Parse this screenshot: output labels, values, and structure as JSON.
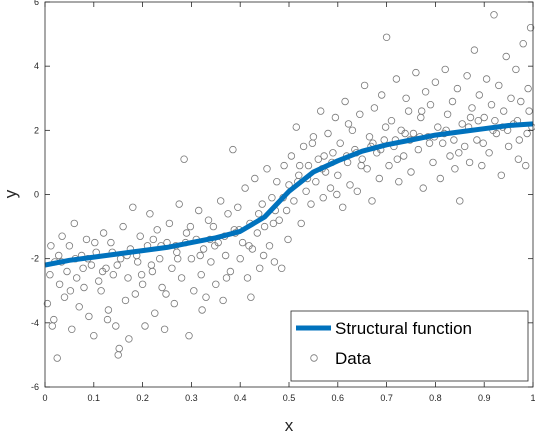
{
  "chart_data": {
    "type": "scatter",
    "title": "",
    "xlabel": "x",
    "ylabel": "y",
    "xlim": [
      0,
      1
    ],
    "ylim": [
      -6,
      6
    ],
    "x_ticks": [
      "0",
      "0.1",
      "0.2",
      "0.3",
      "0.4",
      "0.5",
      "0.6",
      "0.7",
      "0.8",
      "0.9",
      "1"
    ],
    "y_ticks": [
      "-6",
      "-4",
      "-2",
      "0",
      "2",
      "4",
      "6"
    ],
    "grid": false,
    "legend": {
      "position": "bottom-right",
      "entries": [
        "Structural function",
        "Data"
      ]
    },
    "colors": {
      "structural_function": "#0072BD",
      "data_marker": "#7a7a7a"
    },
    "series": [
      {
        "name": "Structural function",
        "style": "line",
        "x": [
          0,
          0.05,
          0.1,
          0.15,
          0.2,
          0.25,
          0.3,
          0.35,
          0.4,
          0.45,
          0.5,
          0.55,
          0.6,
          0.65,
          0.7,
          0.75,
          0.8,
          0.85,
          0.9,
          0.95,
          1.0
        ],
        "y": [
          -2.2,
          -2.05,
          -1.95,
          -1.85,
          -1.75,
          -1.65,
          -1.5,
          -1.35,
          -1.15,
          -0.7,
          0.1,
          0.7,
          1.05,
          1.35,
          1.55,
          1.7,
          1.85,
          1.95,
          2.05,
          2.15,
          2.2
        ]
      },
      {
        "name": "Data",
        "style": "markers",
        "points": [
          [
            0.005,
            -3.4
          ],
          [
            0.01,
            -2.5
          ],
          [
            0.012,
            -1.6
          ],
          [
            0.018,
            -3.9
          ],
          [
            0.02,
            -2.1
          ],
          [
            0.025,
            -5.1
          ],
          [
            0.03,
            -2.8
          ],
          [
            0.035,
            -1.3
          ],
          [
            0.04,
            -3.2
          ],
          [
            0.045,
            -2.4
          ],
          [
            0.05,
            -1.6
          ],
          [
            0.055,
            -4.2
          ],
          [
            0.06,
            -0.9
          ],
          [
            0.065,
            -2.6
          ],
          [
            0.07,
            -3.5
          ],
          [
            0.075,
            -1.9
          ],
          [
            0.08,
            -2.9
          ],
          [
            0.085,
            -1.4
          ],
          [
            0.09,
            -3.8
          ],
          [
            0.095,
            -2.2
          ],
          [
            0.1,
            -4.4
          ],
          [
            0.105,
            -1.8
          ],
          [
            0.11,
            -2.7
          ],
          [
            0.115,
            -3.0
          ],
          [
            0.12,
            -1.2
          ],
          [
            0.125,
            -2.3
          ],
          [
            0.13,
            -3.6
          ],
          [
            0.135,
            -1.5
          ],
          [
            0.14,
            -2.5
          ],
          [
            0.145,
            -4.1
          ],
          [
            0.15,
            -5.0
          ],
          [
            0.152,
            -4.8
          ],
          [
            0.155,
            -2.0
          ],
          [
            0.16,
            -1.0
          ],
          [
            0.165,
            -3.3
          ],
          [
            0.17,
            -2.6
          ],
          [
            0.175,
            -1.7
          ],
          [
            0.18,
            -0.4
          ],
          [
            0.185,
            -3.1
          ],
          [
            0.19,
            -2.1
          ],
          [
            0.195,
            -1.3
          ],
          [
            0.2,
            -2.8
          ],
          [
            0.205,
            -4.1
          ],
          [
            0.21,
            -1.6
          ],
          [
            0.215,
            -0.6
          ],
          [
            0.22,
            -2.4
          ],
          [
            0.225,
            -3.7
          ],
          [
            0.23,
            -1.1
          ],
          [
            0.235,
            -2.0
          ],
          [
            0.24,
            -2.9
          ],
          [
            0.245,
            -4.2
          ],
          [
            0.25,
            -1.5
          ],
          [
            0.255,
            -0.9
          ],
          [
            0.26,
            -2.3
          ],
          [
            0.265,
            -3.4
          ],
          [
            0.27,
            -1.8
          ],
          [
            0.275,
            -0.3
          ],
          [
            0.28,
            -2.6
          ],
          [
            0.285,
            1.1
          ],
          [
            0.29,
            -1.2
          ],
          [
            0.295,
            -4.4
          ],
          [
            0.3,
            -2.0
          ],
          [
            0.305,
            -3.0
          ],
          [
            0.31,
            -1.4
          ],
          [
            0.315,
            -0.5
          ],
          [
            0.32,
            -2.5
          ],
          [
            0.325,
            -1.7
          ],
          [
            0.33,
            -3.2
          ],
          [
            0.335,
            -0.8
          ],
          [
            0.34,
            -2.1
          ],
          [
            0.345,
            -1.0
          ],
          [
            0.35,
            -2.8
          ],
          [
            0.355,
            -1.5
          ],
          [
            0.36,
            -0.2
          ],
          [
            0.365,
            -3.3
          ],
          [
            0.37,
            -1.9
          ],
          [
            0.375,
            -0.6
          ],
          [
            0.38,
            -2.4
          ],
          [
            0.385,
            1.4
          ],
          [
            0.39,
            -1.2
          ],
          [
            0.395,
            -0.4
          ],
          [
            0.4,
            -2.0
          ],
          [
            0.405,
            -1.5
          ],
          [
            0.41,
            0.2
          ],
          [
            0.415,
            -2.6
          ],
          [
            0.42,
            -0.9
          ],
          [
            0.425,
            -1.7
          ],
          [
            0.43,
            0.5
          ],
          [
            0.435,
            -1.2
          ],
          [
            0.44,
            -2.3
          ],
          [
            0.445,
            -0.3
          ],
          [
            0.45,
            -1.0
          ],
          [
            0.455,
            0.8
          ],
          [
            0.46,
            -1.6
          ],
          [
            0.465,
            -0.1
          ],
          [
            0.47,
            -2.1
          ],
          [
            0.475,
            0.4
          ],
          [
            0.48,
            -0.8
          ],
          [
            0.485,
            -2.3
          ],
          [
            0.49,
            0.9
          ],
          [
            0.495,
            -0.5
          ],
          [
            0.5,
            0.3
          ],
          [
            0.505,
            1.2
          ],
          [
            0.51,
            -0.2
          ],
          [
            0.515,
            2.1
          ],
          [
            0.52,
            0.6
          ],
          [
            0.525,
            -0.9
          ],
          [
            0.53,
            1.5
          ],
          [
            0.535,
            0.1
          ],
          [
            0.54,
            0.9
          ],
          [
            0.545,
            -0.3
          ],
          [
            0.55,
            1.8
          ],
          [
            0.555,
            0.4
          ],
          [
            0.56,
            1.1
          ],
          [
            0.565,
            2.6
          ],
          [
            0.57,
            -0.1
          ],
          [
            0.575,
            0.7
          ],
          [
            0.58,
            1.9
          ],
          [
            0.585,
            0.2
          ],
          [
            0.59,
            1.3
          ],
          [
            0.595,
            2.4
          ],
          [
            0.6,
            0.6
          ],
          [
            0.605,
            1.6
          ],
          [
            0.61,
            -0.4
          ],
          [
            0.615,
            2.9
          ],
          [
            0.62,
            1.0
          ],
          [
            0.625,
            0.3
          ],
          [
            0.63,
            2.0
          ],
          [
            0.635,
            1.4
          ],
          [
            0.64,
            0.1
          ],
          [
            0.645,
            2.5
          ],
          [
            0.65,
            1.1
          ],
          [
            0.655,
            3.4
          ],
          [
            0.66,
            0.8
          ],
          [
            0.665,
            1.8
          ],
          [
            0.67,
            -0.2
          ],
          [
            0.675,
            2.7
          ],
          [
            0.68,
            1.3
          ],
          [
            0.685,
            0.5
          ],
          [
            0.69,
            3.1
          ],
          [
            0.695,
            1.7
          ],
          [
            0.7,
            4.9
          ],
          [
            0.705,
            0.9
          ],
          [
            0.71,
            2.3
          ],
          [
            0.715,
            1.5
          ],
          [
            0.72,
            3.6
          ],
          [
            0.725,
            0.4
          ],
          [
            0.73,
            2.0
          ],
          [
            0.735,
            1.2
          ],
          [
            0.74,
            3.0
          ],
          [
            0.745,
            2.6
          ],
          [
            0.75,
            0.7
          ],
          [
            0.755,
            1.9
          ],
          [
            0.76,
            3.8
          ],
          [
            0.765,
            1.4
          ],
          [
            0.77,
            2.4
          ],
          [
            0.775,
            0.2
          ],
          [
            0.78,
            3.2
          ],
          [
            0.785,
            1.8
          ],
          [
            0.79,
            2.8
          ],
          [
            0.795,
            1.0
          ],
          [
            0.8,
            3.5
          ],
          [
            0.805,
            2.1
          ],
          [
            0.81,
            0.5
          ],
          [
            0.815,
            1.6
          ],
          [
            0.82,
            3.9
          ],
          [
            0.825,
            2.5
          ],
          [
            0.83,
            1.2
          ],
          [
            0.835,
            2.9
          ],
          [
            0.84,
            0.8
          ],
          [
            0.845,
            3.3
          ],
          [
            0.85,
            -0.2
          ],
          [
            0.855,
            2.2
          ],
          [
            0.86,
            1.5
          ],
          [
            0.865,
            3.7
          ],
          [
            0.87,
            1.0
          ],
          [
            0.875,
            2.7
          ],
          [
            0.88,
            4.5
          ],
          [
            0.885,
            1.7
          ],
          [
            0.89,
            3.1
          ],
          [
            0.895,
            0.9
          ],
          [
            0.9,
            2.4
          ],
          [
            0.905,
            3.6
          ],
          [
            0.91,
            1.3
          ],
          [
            0.915,
            2.8
          ],
          [
            0.92,
            5.6
          ],
          [
            0.925,
            1.9
          ],
          [
            0.93,
            3.4
          ],
          [
            0.935,
            0.6
          ],
          [
            0.94,
            2.6
          ],
          [
            0.945,
            4.3
          ],
          [
            0.95,
            1.5
          ],
          [
            0.955,
            3.0
          ],
          [
            0.96,
            2.2
          ],
          [
            0.965,
            3.9
          ],
          [
            0.97,
            1.1
          ],
          [
            0.975,
            2.9
          ],
          [
            0.98,
            4.7
          ],
          [
            0.985,
            0.9
          ],
          [
            0.99,
            3.3
          ],
          [
            0.995,
            5.2
          ],
          [
            0.998,
            2.1
          ],
          [
            0.015,
            -4.1
          ],
          [
            0.028,
            -1.9
          ],
          [
            0.052,
            -3.0
          ],
          [
            0.078,
            -2.3
          ],
          [
            0.102,
            -1.5
          ],
          [
            0.128,
            -3.9
          ],
          [
            0.148,
            -2.2
          ],
          [
            0.172,
            -4.5
          ],
          [
            0.198,
            -2.5
          ],
          [
            0.222,
            -1.4
          ],
          [
            0.248,
            -3.1
          ],
          [
            0.272,
            -2.0
          ],
          [
            0.298,
            -1.0
          ],
          [
            0.322,
            -3.6
          ],
          [
            0.348,
            -1.6
          ],
          [
            0.372,
            -2.6
          ],
          [
            0.398,
            -1.1
          ],
          [
            0.422,
            -3.2
          ],
          [
            0.448,
            -1.9
          ],
          [
            0.472,
            -0.5
          ],
          [
            0.498,
            -1.4
          ],
          [
            0.522,
            0.9
          ],
          [
            0.548,
            1.6
          ],
          [
            0.572,
            1.2
          ],
          [
            0.598,
            0.0
          ],
          [
            0.622,
            2.2
          ],
          [
            0.648,
            0.9
          ],
          [
            0.672,
            1.6
          ],
          [
            0.698,
            2.1
          ],
          [
            0.722,
            1.1
          ],
          [
            0.748,
            1.7
          ],
          [
            0.772,
            2.6
          ],
          [
            0.798,
            1.8
          ],
          [
            0.822,
            2.0
          ],
          [
            0.848,
            1.3
          ],
          [
            0.872,
            2.4
          ],
          [
            0.898,
            1.6
          ],
          [
            0.922,
            2.3
          ],
          [
            0.948,
            2.0
          ],
          [
            0.972,
            1.7
          ],
          [
            0.992,
            2.6
          ],
          [
            0.062,
            -2.0
          ],
          [
            0.118,
            -2.4
          ],
          [
            0.168,
            -1.9
          ],
          [
            0.218,
            -2.2
          ],
          [
            0.268,
            -1.6
          ],
          [
            0.318,
            -1.9
          ],
          [
            0.368,
            -1.3
          ],
          [
            0.418,
            -1.6
          ],
          [
            0.468,
            -0.9
          ],
          [
            0.518,
            0.4
          ],
          [
            0.568,
            0.8
          ],
          [
            0.618,
            1.2
          ],
          [
            0.668,
            1.5
          ],
          [
            0.718,
            1.7
          ],
          [
            0.768,
            1.8
          ],
          [
            0.818,
            1.9
          ],
          [
            0.868,
            2.1
          ],
          [
            0.918,
            2.0
          ],
          [
            0.968,
            2.3
          ],
          [
            0.034,
            -2.1
          ],
          [
            0.088,
            -2.0
          ],
          [
            0.138,
            -1.8
          ],
          [
            0.188,
            -1.9
          ],
          [
            0.238,
            -1.6
          ],
          [
            0.288,
            -1.5
          ],
          [
            0.338,
            -1.4
          ],
          [
            0.388,
            -1.1
          ],
          [
            0.438,
            -0.6
          ],
          [
            0.488,
            -0.1
          ],
          [
            0.538,
            0.5
          ],
          [
            0.588,
            1.0
          ],
          [
            0.638,
            1.3
          ],
          [
            0.688,
            1.4
          ],
          [
            0.738,
            1.9
          ],
          [
            0.788,
            1.6
          ],
          [
            0.838,
            1.7
          ],
          [
            0.888,
            2.3
          ],
          [
            0.938,
            2.1
          ],
          [
            0.988,
            1.9
          ]
        ]
      }
    ]
  }
}
